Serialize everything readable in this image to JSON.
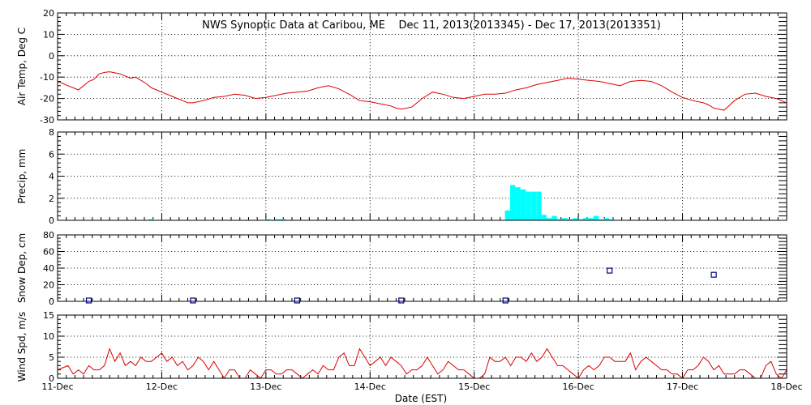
{
  "chart_data": {
    "type": "line",
    "title": "NWS Synoptic Data at Caribou, ME    Dec 11, 2013(2013345) - Dec 17, 2013(2013351)",
    "xlabel": "Date (EST)",
    "x_tick_labels": [
      "11-Dec",
      "12-Dec",
      "13-Dec",
      "14-Dec",
      "15-Dec",
      "16-Dec",
      "17-Dec",
      "18-Dec"
    ],
    "x_range_days": [
      0,
      7
    ],
    "panels": [
      {
        "ylabel": "Air Temp, Deg C",
        "type": "line",
        "color": "#dd0000",
        "ylim": [
          -30,
          20
        ],
        "yticks": [
          -30,
          -20,
          -10,
          0,
          10,
          20
        ],
        "series": {
          "x": [
            0,
            0.05,
            0.1,
            0.15,
            0.2,
            0.25,
            0.3,
            0.35,
            0.4,
            0.45,
            0.5,
            0.55,
            0.6,
            0.65,
            0.7,
            0.75,
            0.8,
            0.85,
            0.9,
            0.95,
            1.0,
            1.1,
            1.2,
            1.25,
            1.3,
            1.4,
            1.5,
            1.6,
            1.7,
            1.8,
            1.9,
            2.0,
            2.1,
            2.2,
            2.3,
            2.4,
            2.5,
            2.6,
            2.7,
            2.8,
            2.9,
            3.0,
            3.1,
            3.2,
            3.25,
            3.3,
            3.4,
            3.5,
            3.6,
            3.7,
            3.8,
            3.9,
            4.0,
            4.1,
            4.2,
            4.3,
            4.4,
            4.5,
            4.6,
            4.7,
            4.8,
            4.9,
            5.0,
            5.1,
            5.2,
            5.3,
            5.4,
            5.5,
            5.6,
            5.7,
            5.8,
            5.9,
            6.0,
            6.1,
            6.2,
            6.25,
            6.3,
            6.4,
            6.5,
            6.6,
            6.7,
            6.8,
            6.9,
            7.0
          ],
          "values": [
            -12,
            -13,
            -14,
            -15,
            -16,
            -14,
            -12,
            -11,
            -8.5,
            -7.8,
            -7.5,
            -8,
            -8.5,
            -9.5,
            -10.5,
            -10,
            -11.5,
            -13,
            -15,
            -16,
            -17,
            -19,
            -21,
            -22,
            -22,
            -21,
            -19.5,
            -19,
            -18,
            -18.5,
            -20,
            -19.5,
            -18.5,
            -17.5,
            -17,
            -16.5,
            -15,
            -14,
            -15.5,
            -18,
            -21,
            -21.5,
            -22.5,
            -23.5,
            -24.5,
            -25,
            -24,
            -20,
            -17,
            -18,
            -19.5,
            -20,
            -19,
            -18,
            -18,
            -17.5,
            -16,
            -15,
            -13.5,
            -12.5,
            -11.5,
            -10.5,
            -11,
            -11.5,
            -12,
            -13,
            -14,
            -12,
            -11.5,
            -12,
            -14,
            -17,
            -19.5,
            -21,
            -22,
            -23,
            -24.5,
            -25.5,
            -21,
            -18,
            -17.5,
            -19,
            -20,
            -22
          ]
        }
      },
      {
        "ylabel": "Precip, mm",
        "type": "bar",
        "color": "#00ffff",
        "ylim": [
          0,
          8
        ],
        "yticks": [
          0,
          2,
          4,
          6,
          8
        ],
        "series": {
          "x": [
            0.9,
            1.05,
            2.02,
            2.07,
            2.12,
            2.17,
            4.32,
            4.37,
            4.42,
            4.47,
            4.52,
            4.57,
            4.62,
            4.67,
            4.72,
            4.77,
            4.82,
            4.87,
            4.92,
            4.97,
            5.02,
            5.07,
            5.12,
            5.17,
            5.22,
            5.27,
            5.32
          ],
          "values": [
            0.1,
            0.05,
            0.1,
            0.05,
            0.1,
            0.1,
            0.9,
            3.2,
            3.0,
            2.8,
            2.6,
            2.6,
            2.6,
            0.5,
            0.2,
            0.4,
            0.1,
            0.2,
            0.1,
            0.2,
            0.1,
            0.2,
            0.2,
            0.4,
            0.1,
            0.2,
            0.1
          ]
        }
      },
      {
        "ylabel": "Snow Dep, cm",
        "type": "scatter",
        "color": "#00008b",
        "ylim": [
          0,
          80
        ],
        "yticks": [
          0,
          20,
          40,
          60,
          80
        ],
        "series": {
          "x": [
            0.3,
            1.3,
            2.3,
            3.3,
            4.3,
            5.3,
            6.3
          ],
          "values": [
            1,
            1,
            1,
            1,
            1,
            37,
            32
          ]
        }
      },
      {
        "ylabel": "Wind Spd, m/s",
        "type": "line",
        "color": "#dd0000",
        "ylim": [
          0,
          15
        ],
        "yticks": [
          0,
          5,
          10,
          15
        ],
        "series": {
          "x": [
            0,
            0.05,
            0.1,
            0.15,
            0.2,
            0.25,
            0.3,
            0.35,
            0.4,
            0.45,
            0.5,
            0.55,
            0.6,
            0.65,
            0.7,
            0.75,
            0.8,
            0.85,
            0.9,
            0.95,
            1.0,
            1.05,
            1.1,
            1.15,
            1.2,
            1.25,
            1.3,
            1.35,
            1.4,
            1.45,
            1.5,
            1.55,
            1.6,
            1.65,
            1.7,
            1.75,
            1.8,
            1.85,
            1.9,
            1.95,
            2.0,
            2.05,
            2.1,
            2.15,
            2.2,
            2.25,
            2.3,
            2.35,
            2.4,
            2.45,
            2.5,
            2.55,
            2.6,
            2.65,
            2.7,
            2.75,
            2.8,
            2.85,
            2.9,
            2.95,
            3.0,
            3.05,
            3.1,
            3.15,
            3.2,
            3.25,
            3.3,
            3.35,
            3.4,
            3.45,
            3.5,
            3.55,
            3.6,
            3.65,
            3.7,
            3.75,
            3.8,
            3.85,
            3.9,
            3.95,
            4.0,
            4.05,
            4.1,
            4.15,
            4.2,
            4.25,
            4.3,
            4.35,
            4.4,
            4.45,
            4.5,
            4.55,
            4.6,
            4.65,
            4.7,
            4.75,
            4.8,
            4.85,
            4.9,
            4.95,
            5.0,
            5.05,
            5.1,
            5.15,
            5.2,
            5.25,
            5.3,
            5.35,
            5.4,
            5.45,
            5.5,
            5.55,
            5.6,
            5.65,
            5.7,
            5.75,
            5.8,
            5.85,
            5.9,
            5.95,
            6.0,
            6.05,
            6.1,
            6.15,
            6.2,
            6.25,
            6.3,
            6.35,
            6.4,
            6.45,
            6.5,
            6.55,
            6.6,
            6.65,
            6.7,
            6.75,
            6.8,
            6.85,
            6.9,
            6.95,
            7.0
          ],
          "values": [
            2,
            2.5,
            3,
            1,
            2,
            1,
            3,
            2,
            2,
            3,
            7,
            4,
            6,
            3,
            4,
            3,
            5,
            4,
            4,
            5,
            6,
            4,
            5,
            3,
            4,
            2,
            3,
            5,
            4,
            2,
            4,
            2,
            0,
            2,
            2,
            0,
            0,
            2,
            1,
            0,
            2,
            2,
            1,
            1,
            2,
            2,
            1,
            0,
            1,
            2,
            1,
            3,
            2,
            2,
            5,
            6,
            3,
            3,
            7,
            5,
            3,
            4,
            5,
            3,
            5,
            4,
            3,
            1,
            2,
            2,
            3,
            5,
            3,
            1,
            2,
            4,
            3,
            2,
            2,
            1,
            0,
            0,
            1,
            5,
            4,
            4,
            5,
            3,
            5,
            5,
            4,
            6,
            4,
            5,
            7,
            5,
            3,
            3,
            2,
            1,
            0,
            2,
            3,
            2,
            3,
            5,
            5,
            4,
            4,
            4,
            6,
            2,
            4,
            5,
            4,
            3,
            2,
            2,
            1,
            1,
            0,
            2,
            2,
            3,
            5,
            4,
            2,
            3,
            1,
            1,
            1,
            2,
            2,
            1,
            0,
            0,
            3,
            4,
            1,
            0,
            2
          ]
        }
      }
    ]
  }
}
